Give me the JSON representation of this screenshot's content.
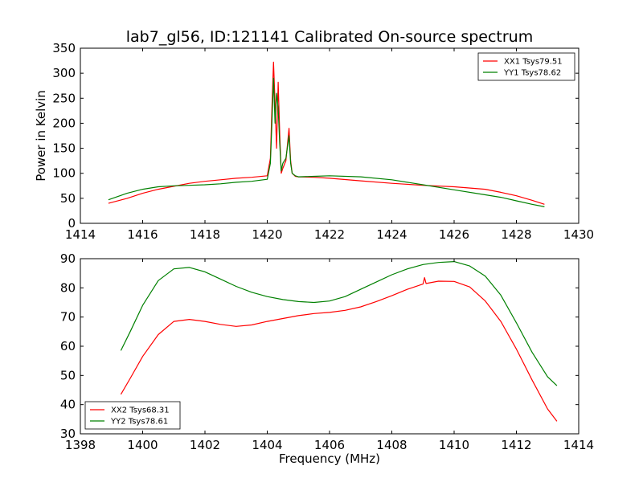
{
  "chart_data": [
    {
      "type": "line",
      "title": "lab7_gl56, ID:121141 Calibrated On-source spectrum",
      "xlabel": "",
      "ylabel": "Power in Kelvin",
      "xlim": [
        1414,
        1430
      ],
      "ylim": [
        0,
        350
      ],
      "xticks": [
        "1414",
        "1416",
        "1418",
        "1420",
        "1422",
        "1424",
        "1426",
        "1428",
        "1430"
      ],
      "yticks": [
        "0",
        "50",
        "100",
        "150",
        "200",
        "250",
        "300",
        "350"
      ],
      "grid": false,
      "legend": "top-right",
      "series": [
        {
          "name": "XX1 Tsys79.51",
          "color": "#ff0000",
          "x": [
            1414.9,
            1415.5,
            1416.0,
            1416.5,
            1417.0,
            1417.5,
            1418.0,
            1418.5,
            1419.0,
            1419.5,
            1420.0,
            1420.1,
            1420.15,
            1420.2,
            1420.25,
            1420.3,
            1420.35,
            1420.4,
            1420.45,
            1420.5,
            1420.6,
            1420.7,
            1420.75,
            1420.8,
            1420.9,
            1421.0,
            1421.5,
            1422.0,
            1423.0,
            1424.0,
            1425.0,
            1426.0,
            1427.0,
            1427.5,
            1428.0,
            1428.5,
            1428.9
          ],
          "y": [
            40,
            50,
            60,
            68,
            74,
            80,
            84,
            87,
            90,
            92,
            95,
            130,
            230,
            322,
            240,
            150,
            282,
            180,
            100,
            110,
            125,
            190,
            125,
            100,
            94,
            93,
            92,
            90,
            85,
            80,
            76,
            73,
            68,
            62,
            55,
            46,
            38
          ]
        },
        {
          "name": "YY1 Tsys78.62",
          "color": "#008000",
          "x": [
            1414.9,
            1415.5,
            1416.0,
            1416.5,
            1417.0,
            1417.5,
            1418.0,
            1418.5,
            1419.0,
            1419.5,
            1420.0,
            1420.1,
            1420.15,
            1420.2,
            1420.25,
            1420.3,
            1420.35,
            1420.4,
            1420.45,
            1420.5,
            1420.6,
            1420.7,
            1420.75,
            1420.8,
            1420.9,
            1421.0,
            1421.5,
            1422.0,
            1423.0,
            1424.0,
            1425.0,
            1426.0,
            1427.0,
            1427.5,
            1428.0,
            1428.5,
            1428.9
          ],
          "y": [
            47,
            60,
            68,
            73,
            75,
            76,
            77,
            79,
            82,
            84,
            88,
            120,
            200,
            290,
            200,
            260,
            230,
            160,
            105,
            120,
            130,
            175,
            120,
            100,
            95,
            93,
            94,
            95,
            93,
            87,
            77,
            67,
            57,
            52,
            45,
            38,
            33
          ]
        }
      ]
    },
    {
      "type": "line",
      "title": "",
      "xlabel": "Frequency (MHz)",
      "ylabel": "",
      "xlim": [
        1398,
        1414
      ],
      "ylim": [
        30,
        90
      ],
      "xticks": [
        "1398",
        "1400",
        "1402",
        "1404",
        "1406",
        "1408",
        "1410",
        "1412",
        "1414"
      ],
      "yticks": [
        "30",
        "40",
        "50",
        "60",
        "70",
        "80",
        "90"
      ],
      "grid": false,
      "legend": "bottom-left",
      "series": [
        {
          "name": "XX2 Tsys68.31",
          "color": "#ff0000",
          "x": [
            1399.3,
            1399.6,
            1400.0,
            1400.5,
            1401.0,
            1401.5,
            1402.0,
            1402.5,
            1403.0,
            1403.5,
            1404.0,
            1404.5,
            1405.0,
            1405.5,
            1406.0,
            1406.5,
            1407.0,
            1407.5,
            1408.0,
            1408.5,
            1409.0,
            1409.05,
            1409.1,
            1409.5,
            1410.0,
            1410.5,
            1411.0,
            1411.5,
            1412.0,
            1412.5,
            1413.0,
            1413.3
          ],
          "y": [
            43.5,
            49,
            56.5,
            64,
            68.5,
            69.2,
            68.5,
            67.5,
            66.8,
            67.3,
            68.5,
            69.5,
            70.5,
            71.2,
            71.6,
            72.3,
            73.5,
            75.3,
            77.3,
            79.5,
            81.3,
            83.5,
            81.5,
            82.3,
            82.2,
            80.3,
            75.5,
            68.5,
            59,
            48.5,
            38.5,
            34.3
          ]
        },
        {
          "name": "YY2 Tsys78.61",
          "color": "#008000",
          "x": [
            1399.3,
            1399.6,
            1400.0,
            1400.5,
            1401.0,
            1401.5,
            1402.0,
            1402.5,
            1403.0,
            1403.5,
            1404.0,
            1404.5,
            1405.0,
            1405.5,
            1406.0,
            1406.5,
            1407.0,
            1407.5,
            1408.0,
            1408.5,
            1409.0,
            1409.5,
            1410.0,
            1410.5,
            1411.0,
            1411.5,
            1412.0,
            1412.5,
            1413.0,
            1413.3
          ],
          "y": [
            58.5,
            65,
            74,
            82.5,
            86.5,
            87,
            85.5,
            83,
            80.5,
            78.5,
            77,
            76,
            75.3,
            75,
            75.5,
            77,
            79.5,
            82,
            84.5,
            86.5,
            88,
            88.7,
            89,
            87.5,
            84,
            77.5,
            68,
            58,
            49.5,
            46.5
          ]
        }
      ]
    }
  ]
}
